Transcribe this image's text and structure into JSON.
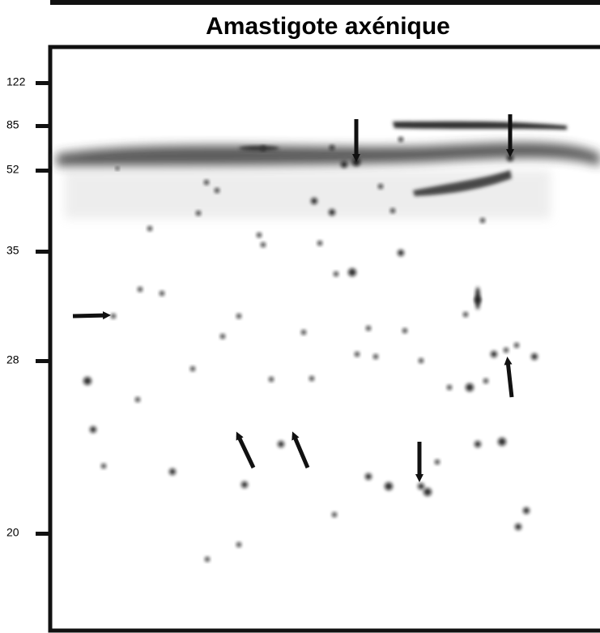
{
  "title": "Amastigote axénique",
  "markers": [
    "122",
    "85",
    "52",
    "35",
    "28",
    "20"
  ]
}
